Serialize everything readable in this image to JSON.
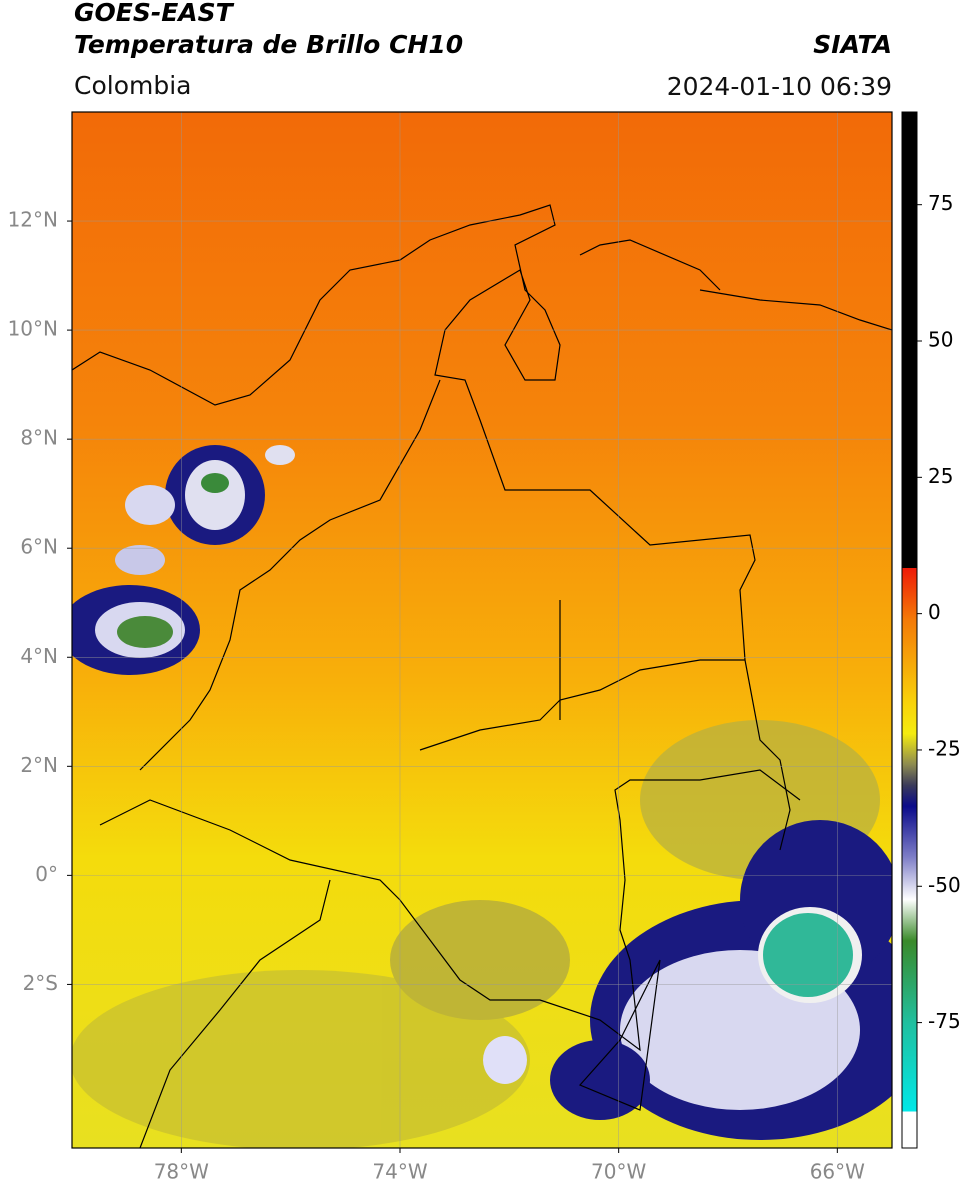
{
  "header": {
    "title_line1": "GOES-EAST",
    "title_line2": "Temperatura de Brillo CH10",
    "source": "SIATA",
    "region": "Colombia",
    "timestamp": "2024-01-10 06:39"
  },
  "map": {
    "xlim": [
      -80,
      -65
    ],
    "ylim": [
      -5,
      14
    ],
    "grid": true,
    "xticks": [
      {
        "value": -78,
        "label": "78°W"
      },
      {
        "value": -74,
        "label": "74°W"
      },
      {
        "value": -70,
        "label": "70°W"
      },
      {
        "value": -66,
        "label": "66°W"
      }
    ],
    "yticks": [
      {
        "value": 12,
        "label": "12°N"
      },
      {
        "value": 10,
        "label": "10°N"
      },
      {
        "value": 8,
        "label": "8°N"
      },
      {
        "value": 6,
        "label": "6°N"
      },
      {
        "value": 4,
        "label": "4°N"
      },
      {
        "value": 2,
        "label": "2°N"
      },
      {
        "value": 0,
        "label": "0°"
      },
      {
        "value": -2,
        "label": "2°S"
      }
    ]
  },
  "colorbar": {
    "lim": [
      -98,
      92
    ],
    "ticks": [
      75,
      50,
      25,
      0,
      -25,
      -50,
      -75
    ]
  }
}
